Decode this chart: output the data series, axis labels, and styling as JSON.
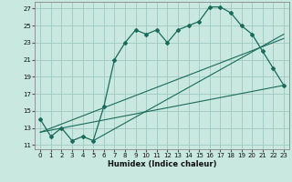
{
  "title": "",
  "xlabel": "Humidex (Indice chaleur)",
  "bg_color": "#c8e8e0",
  "grid_color": "#a0c8c0",
  "line_color": "#1a6b5a",
  "xlim": [
    -0.5,
    23.5
  ],
  "ylim": [
    10.5,
    27.8
  ],
  "yticks": [
    11,
    13,
    15,
    17,
    19,
    21,
    23,
    25,
    27
  ],
  "xticks": [
    0,
    1,
    2,
    3,
    4,
    5,
    6,
    7,
    8,
    9,
    10,
    11,
    12,
    13,
    14,
    15,
    16,
    17,
    18,
    19,
    20,
    21,
    22,
    23
  ],
  "main_x": [
    0,
    1,
    2,
    3,
    4,
    5,
    6,
    7,
    8,
    9,
    10,
    11,
    12,
    13,
    14,
    15,
    16,
    17,
    18,
    19,
    20,
    21,
    22,
    23
  ],
  "main_y": [
    14,
    12,
    13,
    11.5,
    12,
    11.5,
    15.5,
    21,
    23,
    24.5,
    24,
    24.5,
    23,
    24.5,
    25,
    25.5,
    27.2,
    27.2,
    26.5,
    25,
    24,
    22,
    20,
    18
  ],
  "trend1_x": [
    0,
    23
  ],
  "trend1_y": [
    12.5,
    18
  ],
  "trend2_x": [
    0,
    23
  ],
  "trend2_y": [
    12.5,
    23.5
  ],
  "trend3_x": [
    5,
    23
  ],
  "trend3_y": [
    11.5,
    24
  ]
}
